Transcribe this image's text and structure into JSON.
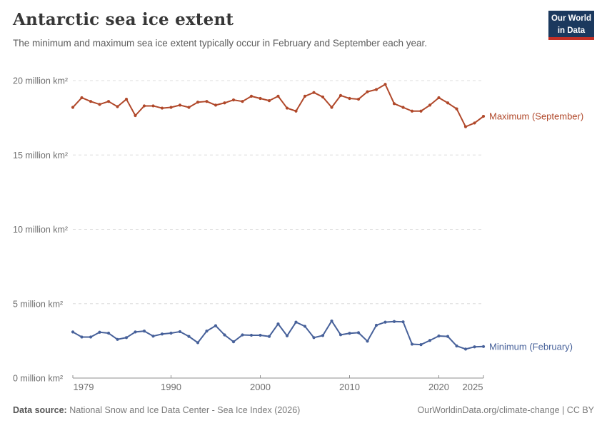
{
  "header": {
    "title": "Antarctic sea ice extent",
    "subtitle": "The minimum and maximum sea ice extent typically occur in February and September each year.",
    "logo_line1": "Our World",
    "logo_line2": "in Data",
    "logo_bg_color": "#1b395e",
    "logo_bar_color": "#c33026"
  },
  "chart_data": {
    "type": "line",
    "title": "Antarctic sea ice extent",
    "xlabel": "",
    "ylabel": "million km²",
    "x": [
      1979,
      1980,
      1981,
      1982,
      1983,
      1984,
      1985,
      1986,
      1987,
      1988,
      1989,
      1990,
      1991,
      1992,
      1993,
      1994,
      1995,
      1996,
      1997,
      1998,
      1999,
      2000,
      2001,
      2002,
      2003,
      2004,
      2005,
      2006,
      2007,
      2008,
      2009,
      2010,
      2011,
      2012,
      2013,
      2014,
      2015,
      2016,
      2017,
      2018,
      2019,
      2020,
      2021,
      2022,
      2023,
      2024,
      2025
    ],
    "series": [
      {
        "name": "Maximum (September)",
        "color": "#b0482a",
        "values": [
          18.2,
          18.85,
          18.6,
          18.4,
          18.6,
          18.25,
          18.75,
          17.65,
          18.3,
          18.3,
          18.15,
          18.2,
          18.35,
          18.2,
          18.55,
          18.6,
          18.35,
          18.5,
          18.7,
          18.6,
          18.95,
          18.8,
          18.65,
          18.95,
          18.15,
          17.95,
          18.95,
          19.2,
          18.9,
          18.2,
          19.0,
          18.8,
          18.75,
          19.25,
          19.4,
          19.75,
          18.45,
          18.2,
          17.95,
          17.95,
          18.35,
          18.85,
          18.5,
          18.1,
          16.9,
          17.15,
          17.6
        ]
      },
      {
        "name": "Minimum (February)",
        "color": "#47619a",
        "values": [
          3.1,
          2.76,
          2.76,
          3.08,
          3.02,
          2.6,
          2.72,
          3.1,
          3.16,
          2.82,
          2.96,
          3.02,
          3.12,
          2.8,
          2.38,
          3.16,
          3.52,
          2.9,
          2.44,
          2.9,
          2.88,
          2.88,
          2.8,
          3.64,
          2.84,
          3.76,
          3.48,
          2.72,
          2.86,
          3.84,
          2.91,
          3.01,
          3.05,
          2.48,
          3.55,
          3.76,
          3.8,
          3.78,
          2.28,
          2.25,
          2.53,
          2.83,
          2.8,
          2.16,
          1.95,
          2.1,
          2.12
        ]
      }
    ],
    "ylim": [
      0,
      20.5
    ],
    "yticks": [
      0,
      5,
      10,
      15,
      20
    ],
    "ytick_labels": [
      "0 million km²",
      "5 million km²",
      "10 million km²",
      "15 million km²",
      "20 million km²"
    ],
    "xticks": [
      1979,
      1990,
      2000,
      2010,
      2020,
      2025
    ],
    "grid": "horizontal-dashed",
    "legend_position": "end-of-line",
    "grid_color": "#dcdcdc",
    "axis_color": "#8f8f8f",
    "tick_label_color": "#6e6e6e"
  },
  "footer": {
    "source_label": "Data source:",
    "source_text": "National Snow and Ice Data Center - Sea Ice Index (2026)",
    "attribution": "OurWorldinData.org/climate-change | CC BY"
  }
}
